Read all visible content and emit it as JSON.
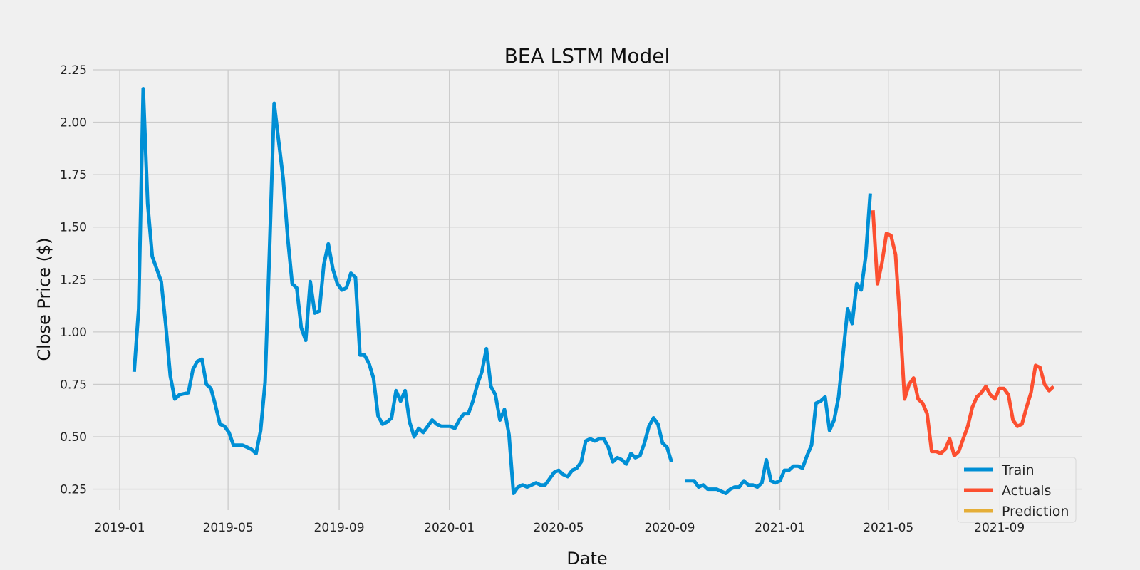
{
  "chart_data": {
    "type": "line",
    "title": "BEA LSTM Model",
    "xlabel": "Date",
    "ylabel": "Close Price ($)",
    "xlim": [
      "2018-12-02",
      "2021-12-01"
    ],
    "ylim": [
      0.15,
      2.25
    ],
    "xticks": [
      "2019-01-01",
      "2019-05-01",
      "2019-09-01",
      "2020-01-01",
      "2020-05-01",
      "2020-09-01",
      "2021-01-01",
      "2021-05-01",
      "2021-09-01"
    ],
    "xtick_labels": [
      "2019-01",
      "2019-05",
      "2019-09",
      "2020-01",
      "2020-05",
      "2020-09",
      "2021-01",
      "2021-05",
      "2021-09"
    ],
    "yticks": [
      0.25,
      0.5,
      0.75,
      1.0,
      1.25,
      1.5,
      1.75,
      2.0,
      2.25
    ],
    "ytick_labels": [
      "0.25",
      "0.50",
      "0.75",
      "1.00",
      "1.25",
      "1.50",
      "1.75",
      "2.00",
      "2.25"
    ],
    "grid": true,
    "legend_position": "bottom-right",
    "series": [
      {
        "name": "Train",
        "color": "#008fd5",
        "segments": [
          [
            [
              "2019-01-17",
              0.81
            ],
            [
              "2019-01-22",
              1.11
            ],
            [
              "2019-01-27",
              2.16
            ],
            [
              "2019-02-01",
              1.61
            ],
            [
              "2019-02-06",
              1.36
            ],
            [
              "2019-02-11",
              1.3
            ],
            [
              "2019-02-16",
              1.24
            ],
            [
              "2019-02-21",
              1.03
            ],
            [
              "2019-02-26",
              0.79
            ],
            [
              "2019-03-03",
              0.68
            ],
            [
              "2019-03-08",
              0.7
            ],
            [
              "2019-03-18",
              0.71
            ],
            [
              "2019-03-23",
              0.82
            ],
            [
              "2019-03-28",
              0.86
            ],
            [
              "2019-04-02",
              0.87
            ],
            [
              "2019-04-07",
              0.75
            ],
            [
              "2019-04-12",
              0.73
            ],
            [
              "2019-04-17",
              0.65
            ],
            [
              "2019-04-22",
              0.56
            ],
            [
              "2019-04-27",
              0.55
            ],
            [
              "2019-05-02",
              0.52
            ],
            [
              "2019-05-07",
              0.46
            ],
            [
              "2019-05-17",
              0.46
            ],
            [
              "2019-05-22",
              0.45
            ],
            [
              "2019-05-27",
              0.44
            ],
            [
              "2019-06-01",
              0.42
            ],
            [
              "2019-06-06",
              0.53
            ],
            [
              "2019-06-11",
              0.76
            ],
            [
              "2019-06-16",
              1.4
            ],
            [
              "2019-06-21",
              2.09
            ],
            [
              "2019-06-26",
              1.91
            ],
            [
              "2019-07-01",
              1.73
            ],
            [
              "2019-07-06",
              1.45
            ],
            [
              "2019-07-11",
              1.23
            ],
            [
              "2019-07-16",
              1.21
            ],
            [
              "2019-07-21",
              1.02
            ],
            [
              "2019-07-26",
              0.96
            ],
            [
              "2019-07-31",
              1.24
            ],
            [
              "2019-08-05",
              1.09
            ],
            [
              "2019-08-10",
              1.1
            ],
            [
              "2019-08-15",
              1.32
            ],
            [
              "2019-08-20",
              1.42
            ],
            [
              "2019-08-25",
              1.3
            ],
            [
              "2019-08-30",
              1.23
            ],
            [
              "2019-09-04",
              1.2
            ],
            [
              "2019-09-09",
              1.21
            ],
            [
              "2019-09-14",
              1.28
            ],
            [
              "2019-09-19",
              1.26
            ],
            [
              "2019-09-24",
              0.89
            ],
            [
              "2019-09-29",
              0.89
            ],
            [
              "2019-10-04",
              0.85
            ],
            [
              "2019-10-09",
              0.78
            ],
            [
              "2019-10-14",
              0.6
            ],
            [
              "2019-10-19",
              0.56
            ],
            [
              "2019-10-24",
              0.57
            ],
            [
              "2019-10-29",
              0.59
            ],
            [
              "2019-11-03",
              0.72
            ],
            [
              "2019-11-08",
              0.67
            ],
            [
              "2019-11-13",
              0.72
            ],
            [
              "2019-11-18",
              0.57
            ],
            [
              "2019-11-23",
              0.5
            ],
            [
              "2019-11-28",
              0.54
            ],
            [
              "2019-12-03",
              0.52
            ],
            [
              "2019-12-08",
              0.55
            ],
            [
              "2019-12-13",
              0.58
            ],
            [
              "2019-12-18",
              0.56
            ],
            [
              "2019-12-23",
              0.55
            ],
            [
              "2019-12-28",
              0.55
            ],
            [
              "2020-01-02",
              0.55
            ],
            [
              "2020-01-07",
              0.54
            ],
            [
              "2020-01-12",
              0.58
            ],
            [
              "2020-01-17",
              0.61
            ],
            [
              "2020-01-22",
              0.61
            ],
            [
              "2020-01-27",
              0.67
            ],
            [
              "2020-02-01",
              0.75
            ],
            [
              "2020-02-06",
              0.81
            ],
            [
              "2020-02-11",
              0.92
            ],
            [
              "2020-02-16",
              0.74
            ],
            [
              "2020-02-21",
              0.7
            ],
            [
              "2020-02-26",
              0.58
            ],
            [
              "2020-03-02",
              0.63
            ],
            [
              "2020-03-07",
              0.51
            ],
            [
              "2020-03-12",
              0.23
            ],
            [
              "2020-03-17",
              0.26
            ],
            [
              "2020-03-22",
              0.27
            ],
            [
              "2020-03-27",
              0.26
            ],
            [
              "2020-04-01",
              0.27
            ],
            [
              "2020-04-06",
              0.28
            ],
            [
              "2020-04-11",
              0.27
            ],
            [
              "2020-04-16",
              0.27
            ],
            [
              "2020-04-21",
              0.3
            ],
            [
              "2020-04-26",
              0.33
            ],
            [
              "2020-05-01",
              0.34
            ],
            [
              "2020-05-06",
              0.32
            ],
            [
              "2020-05-11",
              0.31
            ],
            [
              "2020-05-16",
              0.34
            ],
            [
              "2020-05-21",
              0.35
            ],
            [
              "2020-05-26",
              0.38
            ],
            [
              "2020-05-31",
              0.48
            ],
            [
              "2020-06-05",
              0.49
            ],
            [
              "2020-06-10",
              0.48
            ],
            [
              "2020-06-15",
              0.49
            ],
            [
              "2020-06-20",
              0.49
            ],
            [
              "2020-06-25",
              0.45
            ],
            [
              "2020-06-30",
              0.38
            ],
            [
              "2020-07-05",
              0.4
            ],
            [
              "2020-07-10",
              0.39
            ],
            [
              "2020-07-15",
              0.37
            ],
            [
              "2020-07-20",
              0.42
            ],
            [
              "2020-07-25",
              0.4
            ],
            [
              "2020-07-30",
              0.41
            ],
            [
              "2020-08-04",
              0.47
            ],
            [
              "2020-08-09",
              0.55
            ],
            [
              "2020-08-14",
              0.59
            ],
            [
              "2020-08-19",
              0.56
            ],
            [
              "2020-08-24",
              0.47
            ],
            [
              "2020-08-29",
              0.45
            ],
            [
              "2020-09-03",
              0.38
            ]
          ],
          [
            [
              "2020-09-18",
              0.29
            ],
            [
              "2020-09-23",
              0.29
            ],
            [
              "2020-09-28",
              0.29
            ],
            [
              "2020-10-03",
              0.26
            ],
            [
              "2020-10-08",
              0.27
            ],
            [
              "2020-10-13",
              0.25
            ],
            [
              "2020-10-18",
              0.25
            ],
            [
              "2020-10-23",
              0.25
            ],
            [
              "2020-10-28",
              0.24
            ],
            [
              "2020-11-02",
              0.23
            ],
            [
              "2020-11-07",
              0.25
            ],
            [
              "2020-11-12",
              0.26
            ],
            [
              "2020-11-17",
              0.26
            ],
            [
              "2020-11-22",
              0.29
            ],
            [
              "2020-11-27",
              0.27
            ],
            [
              "2020-12-02",
              0.27
            ],
            [
              "2020-12-07",
              0.26
            ],
            [
              "2020-12-12",
              0.28
            ],
            [
              "2020-12-17",
              0.39
            ],
            [
              "2020-12-22",
              0.29
            ],
            [
              "2020-12-27",
              0.28
            ],
            [
              "2021-01-01",
              0.29
            ],
            [
              "2021-01-06",
              0.34
            ],
            [
              "2021-01-11",
              0.34
            ],
            [
              "2021-01-16",
              0.36
            ],
            [
              "2021-01-21",
              0.36
            ],
            [
              "2021-01-26",
              0.35
            ],
            [
              "2021-01-31",
              0.41
            ],
            [
              "2021-02-05",
              0.46
            ],
            [
              "2021-02-10",
              0.66
            ],
            [
              "2021-02-15",
              0.67
            ],
            [
              "2021-02-20",
              0.69
            ],
            [
              "2021-02-25",
              0.53
            ],
            [
              "2021-03-02",
              0.58
            ],
            [
              "2021-03-07",
              0.69
            ],
            [
              "2021-03-12",
              0.9
            ],
            [
              "2021-03-17",
              1.11
            ],
            [
              "2021-03-22",
              1.04
            ],
            [
              "2021-03-27",
              1.23
            ],
            [
              "2021-04-01",
              1.2
            ],
            [
              "2021-04-06",
              1.36
            ],
            [
              "2021-04-11",
              1.66
            ]
          ]
        ]
      },
      {
        "name": "Actuals",
        "color": "#fc4f30",
        "segments": [
          [
            [
              "2021-04-14",
              1.58
            ],
            [
              "2021-04-19",
              1.23
            ],
            [
              "2021-04-24",
              1.33
            ],
            [
              "2021-04-29",
              1.47
            ],
            [
              "2021-05-04",
              1.46
            ],
            [
              "2021-05-09",
              1.37
            ],
            [
              "2021-05-14",
              1.05
            ],
            [
              "2021-05-19",
              0.68
            ],
            [
              "2021-05-24",
              0.75
            ],
            [
              "2021-05-29",
              0.78
            ],
            [
              "2021-06-03",
              0.68
            ],
            [
              "2021-06-08",
              0.66
            ],
            [
              "2021-06-13",
              0.61
            ],
            [
              "2021-06-18",
              0.43
            ],
            [
              "2021-06-23",
              0.43
            ],
            [
              "2021-06-28",
              0.42
            ],
            [
              "2021-07-03",
              0.44
            ],
            [
              "2021-07-08",
              0.49
            ],
            [
              "2021-07-13",
              0.41
            ],
            [
              "2021-07-18",
              0.43
            ],
            [
              "2021-07-23",
              0.49
            ],
            [
              "2021-07-28",
              0.55
            ],
            [
              "2021-08-02",
              0.64
            ],
            [
              "2021-08-07",
              0.69
            ],
            [
              "2021-08-12",
              0.71
            ],
            [
              "2021-08-17",
              0.74
            ],
            [
              "2021-08-22",
              0.7
            ],
            [
              "2021-08-27",
              0.68
            ],
            [
              "2021-09-01",
              0.73
            ],
            [
              "2021-09-06",
              0.73
            ],
            [
              "2021-09-11",
              0.7
            ],
            [
              "2021-09-16",
              0.58
            ],
            [
              "2021-09-21",
              0.55
            ],
            [
              "2021-09-26",
              0.56
            ],
            [
              "2021-10-01",
              0.64
            ],
            [
              "2021-10-06",
              0.71
            ],
            [
              "2021-10-11",
              0.84
            ],
            [
              "2021-10-16",
              0.83
            ],
            [
              "2021-10-21",
              0.75
            ],
            [
              "2021-10-26",
              0.72
            ],
            [
              "2021-10-31",
              0.74
            ]
          ]
        ]
      },
      {
        "name": "Prediction",
        "color": "#e5ae38",
        "segments": []
      }
    ]
  }
}
